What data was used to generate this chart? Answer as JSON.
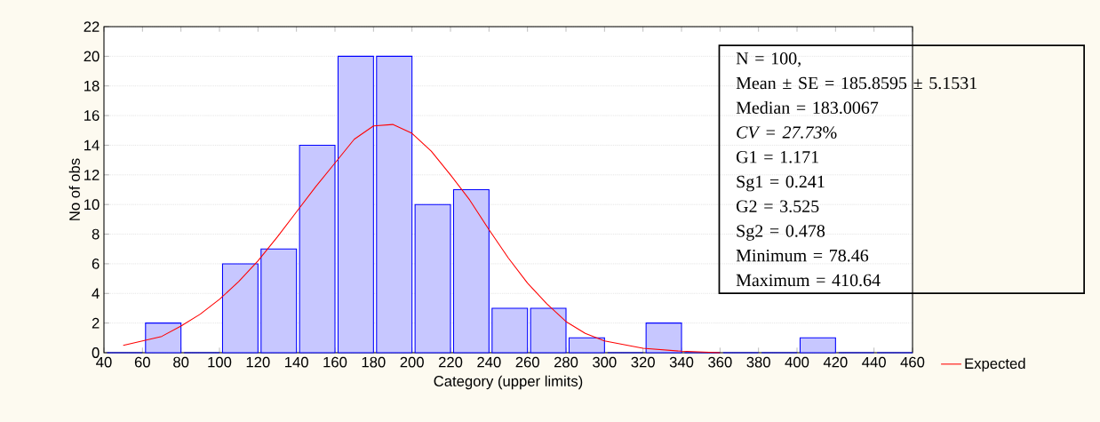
{
  "chart_data": {
    "type": "histogram",
    "xlabel": "Category (upper limits)",
    "ylabel": "No of obs",
    "bins": [
      40,
      60,
      80,
      100,
      120,
      140,
      160,
      180,
      200,
      220,
      240,
      260,
      280,
      300,
      320,
      340,
      360,
      380,
      400,
      420,
      440,
      460
    ],
    "values": [
      0,
      2,
      0,
      6,
      7,
      14,
      20,
      20,
      10,
      11,
      3,
      3,
      1,
      0,
      2,
      0,
      0,
      0,
      1,
      0,
      0
    ],
    "color": "#0000ff",
    "series": [
      {
        "name": "Expected",
        "type": "line",
        "color": "#ff0000",
        "x": [
          50,
          70,
          80,
          90,
          100,
          110,
          120,
          130,
          140,
          150,
          160,
          170,
          180,
          190,
          200,
          210,
          220,
          230,
          240,
          250,
          260,
          270,
          280,
          290,
          300,
          320,
          340,
          360
        ],
        "values": [
          0.5,
          1.1,
          1.8,
          2.6,
          3.6,
          4.8,
          6.2,
          7.8,
          9.5,
          11.2,
          12.8,
          14.4,
          15.3,
          15.4,
          14.8,
          13.6,
          12.0,
          10.3,
          8.3,
          6.4,
          4.7,
          3.3,
          2.1,
          1.3,
          0.8,
          0.3,
          0.1,
          0
        ]
      }
    ],
    "xlim": [
      40,
      460
    ],
    "xticks": [
      40,
      60,
      80,
      100,
      120,
      140,
      160,
      180,
      200,
      220,
      240,
      260,
      280,
      300,
      320,
      340,
      360,
      380,
      400,
      420,
      440,
      460
    ],
    "ylim": [
      0,
      22
    ],
    "yticks": [
      0,
      2,
      4,
      6,
      8,
      10,
      12,
      14,
      16,
      18,
      20,
      22
    ],
    "grid": "y",
    "legend": "bottom right",
    "annotations": [
      "N = 100,",
      "Mean ± SE = 185.8595 ± 5.1531",
      "Median = 183.0067",
      "*CV = 27.73*%",
      "G1 = 1.171",
      "Sg1 = 0.241",
      "G2 = 3.525",
      "Sg2 = 0.478",
      "Minimum = 78.46",
      "Maximum = 410.64"
    ]
  }
}
